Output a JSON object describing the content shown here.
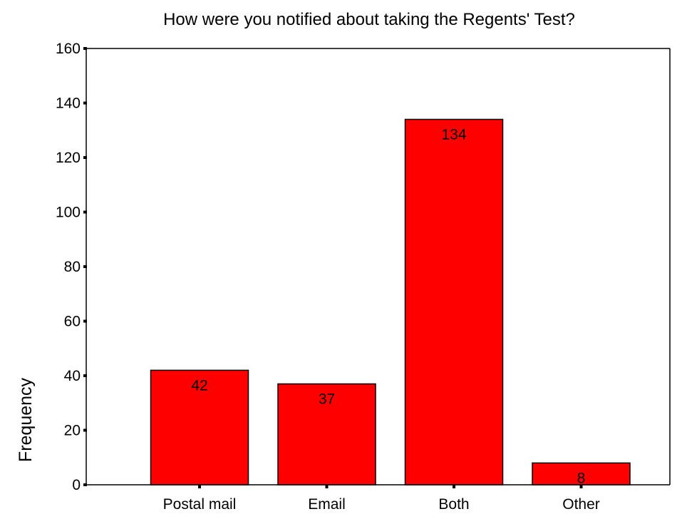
{
  "chart_data": {
    "type": "bar",
    "title": "How were you notified about taking the Regents' Test?",
    "xlabel": "",
    "ylabel": "Frequency",
    "categories": [
      "Postal mail",
      "Email",
      "Both",
      "Other"
    ],
    "values": [
      42,
      37,
      134,
      8
    ],
    "data_labels": [
      "42",
      "37",
      "134",
      "8"
    ],
    "ylim": [
      0,
      160
    ],
    "yticks": [
      0,
      20,
      40,
      60,
      80,
      100,
      120,
      140,
      160
    ],
    "ytick_labels": [
      "0",
      "20",
      "40",
      "60",
      "80",
      "100",
      "120",
      "140",
      "160"
    ],
    "grid": false,
    "legend": "none",
    "colors": {
      "bar_fill": "#ff0000",
      "bar_stroke": "#000000",
      "axis": "#000000",
      "background": "#ffffff"
    }
  }
}
